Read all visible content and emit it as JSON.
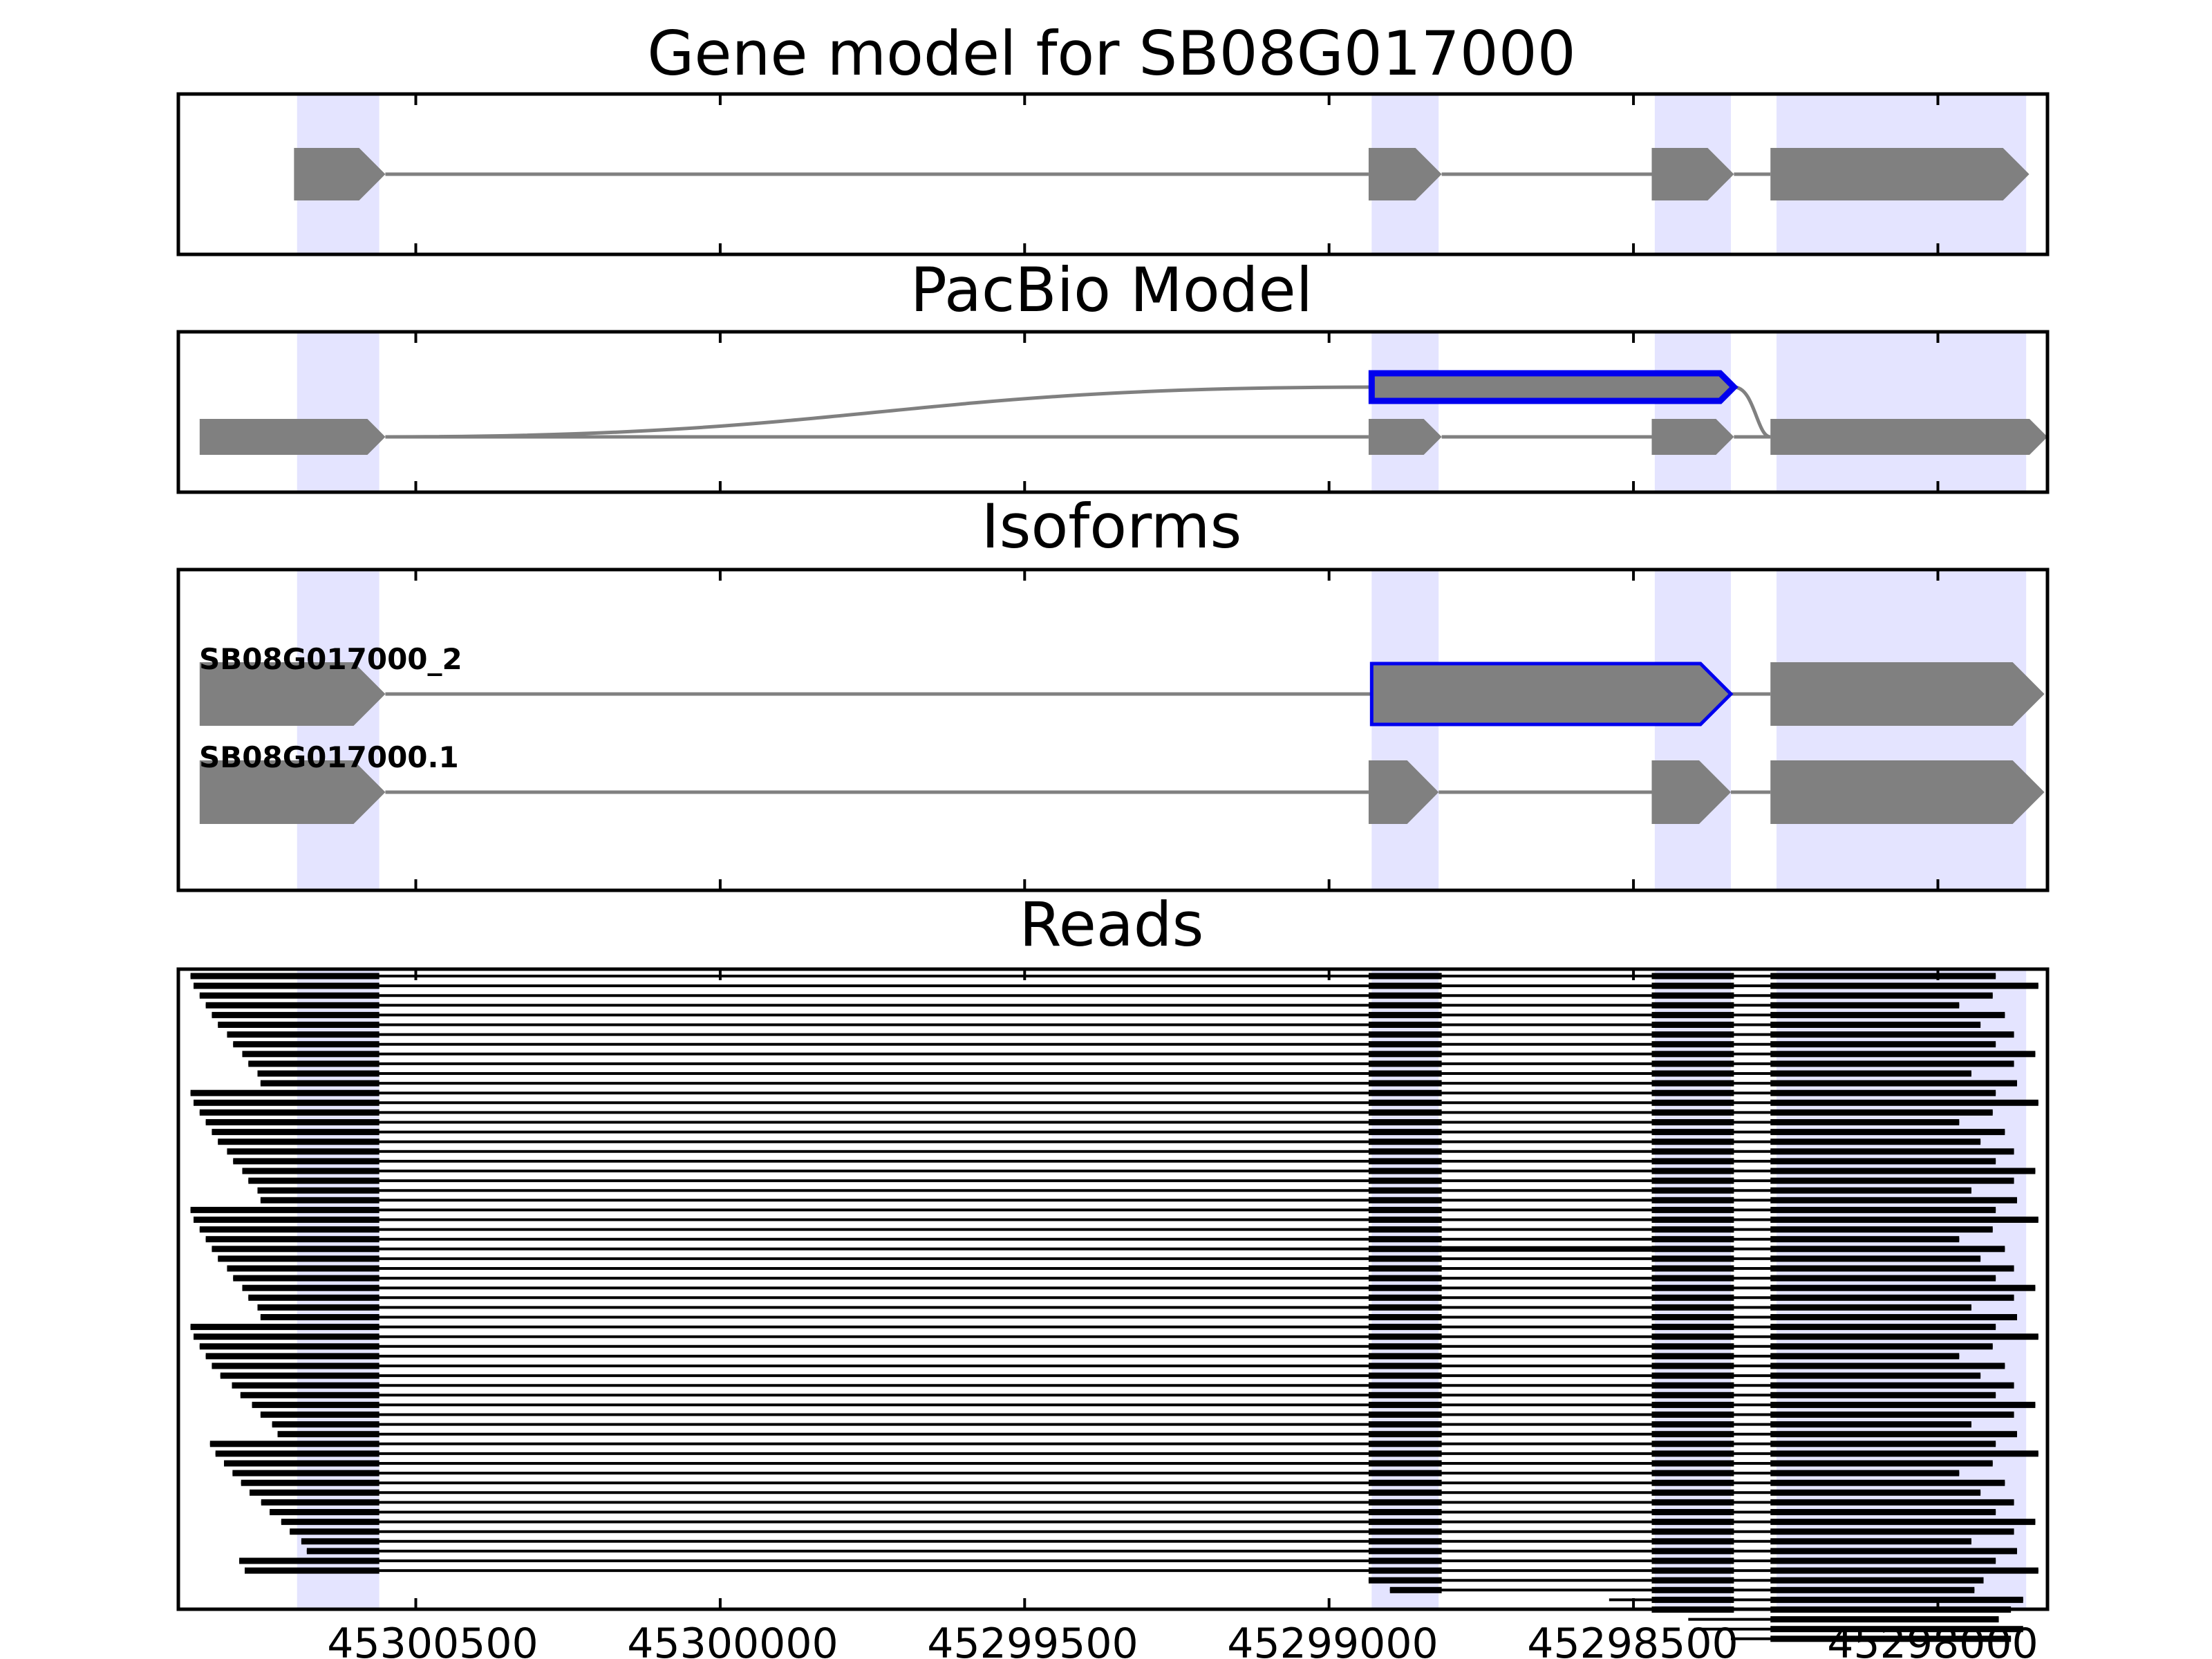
{
  "figure": {
    "panels": [
      {
        "id": "gene-model",
        "title": "Gene model for SB08G017000"
      },
      {
        "id": "pacbio",
        "title": "PacBio Model"
      },
      {
        "id": "isoforms",
        "title": "Isoforms"
      },
      {
        "id": "reads",
        "title": "Reads"
      }
    ],
    "isoform_labels": [
      "SB08G017000_2",
      "SB08G017000.1"
    ],
    "x_axis": {
      "direction": "reversed",
      "range": [
        45300890,
        45297820
      ],
      "ticks": [
        45300500,
        45300000,
        45299500,
        45299000,
        45298500,
        45298000
      ],
      "tick_labels": [
        "45300500",
        "45300000",
        "45299500",
        "45299000",
        "45298500",
        "45298000"
      ]
    },
    "colors": {
      "exon": "#808080",
      "highlight": "#0000ee",
      "shade": "#e4e4ff",
      "intron": "#808080",
      "read": "#000000"
    }
  },
  "gene_structure": {
    "exon_regions": [
      [
        45300695,
        45300560
      ],
      [
        45298930,
        45298820
      ],
      [
        45298465,
        45298340
      ],
      [
        45298265,
        45297855
      ]
    ],
    "gene_model_exons": [
      [
        45300700,
        45300550
      ],
      [
        45298935,
        45298815
      ],
      [
        45298470,
        45298335
      ],
      [
        45298275,
        45297850
      ]
    ],
    "pacbio_model": {
      "lower_exons": [
        [
          45300855,
          45300550
        ],
        [
          45298935,
          45298815
        ],
        [
          45298470,
          45298335
        ],
        [
          45298275,
          45297820
        ]
      ],
      "retained_intron_exon": [
        45298930,
        45298335
      ]
    },
    "isoforms": [
      {
        "name": "SB08G017000_2",
        "exons": [
          [
            45300855,
            45300550
          ],
          [
            45298930,
            45298340
          ],
          [
            45298275,
            45297825
          ]
        ],
        "highlighted_exon": 1
      },
      {
        "name": "SB08G017000.1",
        "exons": [
          [
            45300855,
            45300550
          ],
          [
            45298935,
            45298820
          ],
          [
            45298470,
            45298340
          ],
          [
            45298275,
            45297825
          ]
        ]
      }
    ]
  },
  "reads": {
    "count": 62,
    "exon_blocks": [
      [
        45300560
      ],
      [
        45298935,
        45298815
      ],
      [
        45298470,
        45298335
      ],
      [
        45298275
      ]
    ],
    "read_starts": [
      45300870,
      45300865,
      45300855,
      45300845,
      45300835,
      45300825,
      45300810,
      45300800,
      45300785,
      45300775,
      45300760,
      45300755
    ],
    "read_ends": [
      45297905,
      45297905,
      45297910,
      45297875,
      45297890,
      45297870,
      45297875,
      45297835,
      45297840,
      45297965,
      45297945,
      45297930
    ]
  }
}
